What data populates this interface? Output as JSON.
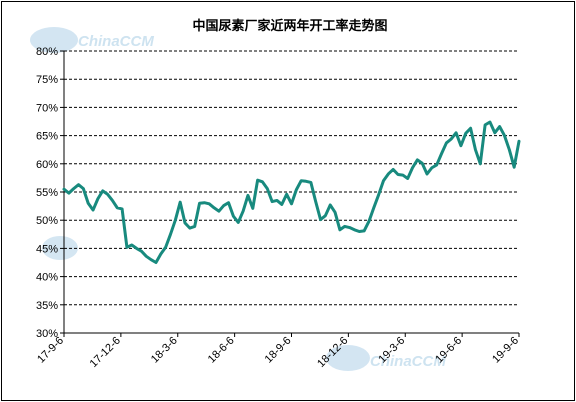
{
  "chart_data": {
    "type": "line",
    "title": "中国尿素厂家近两年开工率走势图",
    "watermark": "ChinaCCM",
    "xlabel": "",
    "ylabel": "",
    "ylim": [
      30,
      80
    ],
    "yticks": [
      "30%",
      "35%",
      "40%",
      "45%",
      "50%",
      "55%",
      "60%",
      "65%",
      "70%",
      "75%",
      "80%"
    ],
    "xtick_labels": [
      "17-9-6",
      "17-12-6",
      "18-3-6",
      "18-6-6",
      "18-9-6",
      "18-12-6",
      "19-3-6",
      "19-6-6",
      "19-9-6"
    ],
    "grid": "horizontal dashed",
    "legend": "none",
    "line_color": "#188a7e",
    "series": [
      {
        "values": [
          55.5,
          54.8,
          55.6,
          56.3,
          55.6,
          53.0,
          51.8,
          53.8,
          55.2,
          54.6,
          53.5,
          52.2,
          52.0,
          45.2,
          45.6,
          45.0,
          44.5,
          43.6,
          43.0,
          42.5,
          44.0,
          45.2,
          47.5,
          50.0,
          53.2,
          49.5,
          48.6,
          48.9,
          53.0,
          53.1,
          52.9,
          52.2,
          51.6,
          52.6,
          53.1,
          50.7,
          49.6,
          51.6,
          54.4,
          52.1,
          57.1,
          56.8,
          55.6,
          53.3,
          53.5,
          52.8,
          54.6,
          52.9,
          55.4,
          57.0,
          56.9,
          56.7,
          53.3,
          50.1,
          50.8,
          52.7,
          51.4,
          48.3,
          48.9,
          48.7,
          48.3,
          48.0,
          48.1,
          49.8,
          52.2,
          54.5,
          57.0,
          58.2,
          59.0,
          58.1,
          58.0,
          57.4,
          59.3,
          60.7,
          60.1,
          58.2,
          59.3,
          59.8,
          61.8,
          63.7,
          64.4,
          65.5,
          63.2,
          65.4,
          66.3,
          62.5,
          60.0,
          66.9,
          67.4,
          65.5,
          66.6,
          65.0,
          62.5,
          59.4,
          64.0
        ]
      }
    ]
  }
}
